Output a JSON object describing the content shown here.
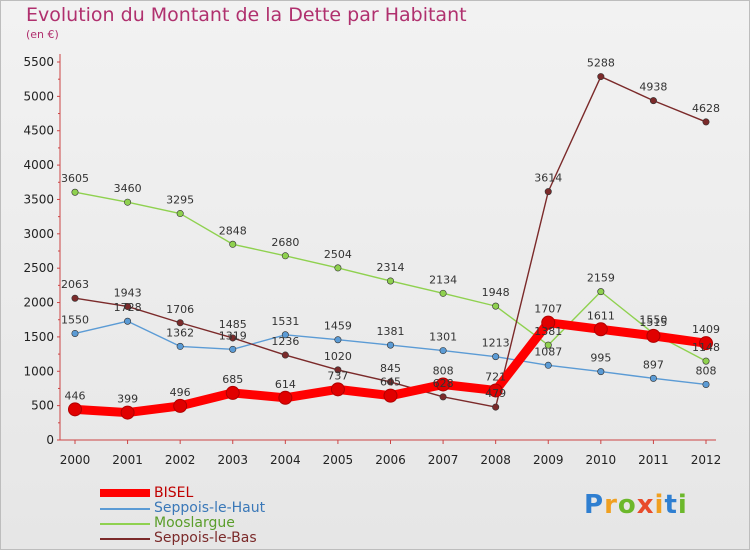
{
  "header": {
    "title": "Evolution du Montant de la Dette par Habitant",
    "subtitle": "(en €)"
  },
  "logo": {
    "text": "Proxiti"
  },
  "chart_data": {
    "type": "line",
    "x": [
      "2000",
      "2001",
      "2002",
      "2003",
      "2004",
      "2005",
      "2006",
      "2007",
      "2008",
      "2009",
      "2010",
      "2011",
      "2012"
    ],
    "ylim": [
      0,
      5500
    ],
    "yticks": [
      "0",
      "500",
      "1000",
      "1500",
      "2000",
      "2500",
      "3000",
      "3500",
      "4000",
      "4500",
      "5000",
      "5500"
    ],
    "grid": false,
    "legend_position": "bottom-left",
    "series": [
      {
        "name": "BISEL",
        "color": "#ff0000",
        "values": [
          446,
          399,
          496,
          685,
          614,
          737,
          645,
          808,
          721,
          1707,
          1611,
          1515,
          1409
        ],
        "labels": [
          "446",
          "399",
          "496",
          "685",
          "614",
          "737",
          "645",
          "808",
          "721",
          "1707",
          "1611",
          "1515",
          "1409"
        ]
      },
      {
        "name": "Seppois-le-Haut",
        "color": "#5b9bd5",
        "values": [
          1550,
          1728,
          1362,
          1319,
          1531,
          1459,
          1381,
          1301,
          1213,
          1087,
          995,
          897,
          808
        ],
        "labels": [
          "1550",
          "1728",
          "1362",
          "1319",
          "1531",
          "1459",
          "1381",
          "1301",
          "1213",
          "1087",
          "995",
          "897",
          "808"
        ]
      },
      {
        "name": "Mooslargue",
        "color": "#8fd14f",
        "values": [
          3605,
          3460,
          3295,
          2848,
          2680,
          2504,
          2314,
          2134,
          1948,
          1381,
          2159,
          1550,
          1148
        ],
        "labels": [
          "3605",
          "3460",
          "3295",
          "2848",
          "2680",
          "2504",
          "2314",
          "2134",
          "1948",
          "1381",
          "2159",
          "1550",
          "1148"
        ]
      },
      {
        "name": "Seppois-le-Bas",
        "color": "#7b2a2a",
        "values": [
          2063,
          1943,
          1706,
          1485,
          1236,
          1020,
          845,
          628,
          479,
          3614,
          5288,
          4938,
          4628
        ],
        "labels": [
          "2063",
          "1943",
          "1706",
          "1485",
          "1236",
          "1020",
          "845",
          "628",
          "479",
          "3614",
          "5288",
          "4938",
          "4628"
        ]
      }
    ]
  }
}
